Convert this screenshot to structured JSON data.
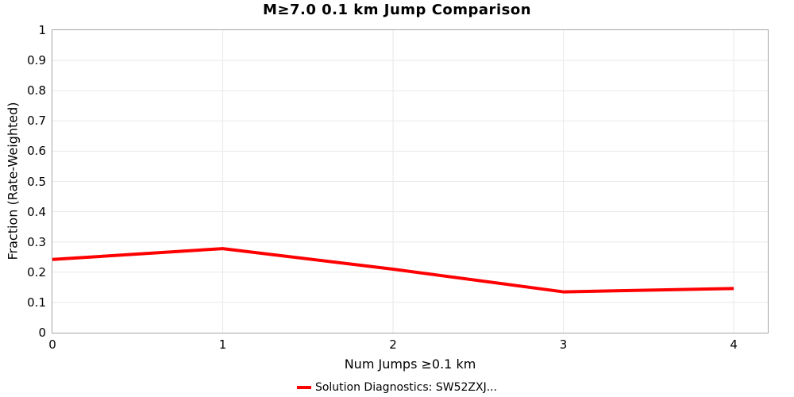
{
  "chart_data": {
    "type": "line",
    "title": "M≥7.0 0.1 km Jump Comparison",
    "xlabel": "Num Jumps ≥0.1 km",
    "ylabel": "Fraction (Rate-Weighted)",
    "x": [
      0,
      1,
      2,
      3,
      4
    ],
    "series": [
      {
        "name": "Solution Diagnostics: SW52ZXJ...",
        "color": "#ff0000",
        "line_width": 4,
        "values": [
          0.242,
          0.278,
          0.21,
          0.135,
          0.146
        ]
      }
    ],
    "xlim": [
      0,
      4.2
    ],
    "ylim": [
      0,
      1
    ],
    "x_ticks": [
      0,
      1,
      2,
      3,
      4
    ],
    "x_tick_labels": [
      "0",
      "1",
      "2",
      "3",
      "4"
    ],
    "y_ticks": [
      0,
      0.1,
      0.2,
      0.3,
      0.4,
      0.5,
      0.6,
      0.7,
      0.8,
      0.9,
      1
    ],
    "y_tick_labels": [
      "0",
      "0.1",
      "0.2",
      "0.3",
      "0.4",
      "0.5",
      "0.6",
      "0.7",
      "0.8",
      "0.9",
      "1"
    ],
    "grid": true,
    "grid_color": "#e8e8e8",
    "border_color": "#a6a6a6",
    "legend_position": "bottom"
  }
}
